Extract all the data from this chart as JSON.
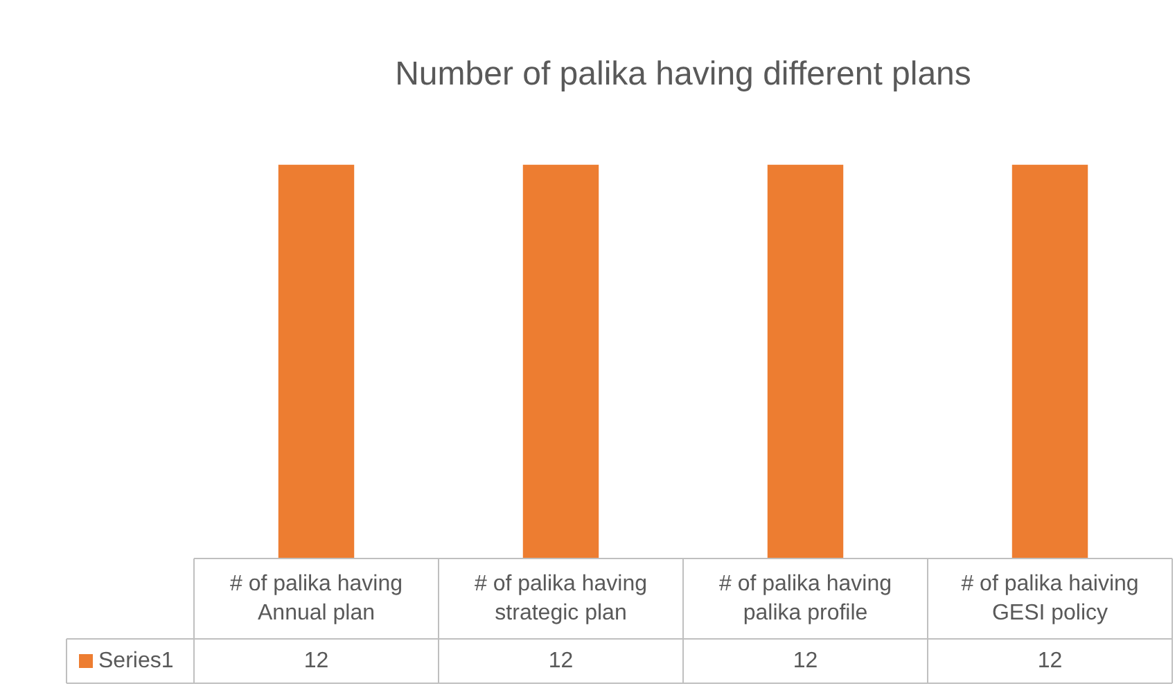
{
  "chart_data": {
    "type": "bar",
    "title": "Number of palika having different plans",
    "categories": [
      "# of palika having Annual plan",
      "# of palika having strategic plan",
      "# of palika having palika profile",
      "# of palika haiving GESI policy"
    ],
    "series": [
      {
        "name": "Series1",
        "color": "#ed7d31",
        "values": [
          12,
          12,
          12,
          12
        ]
      }
    ],
    "data_labels": true
  }
}
